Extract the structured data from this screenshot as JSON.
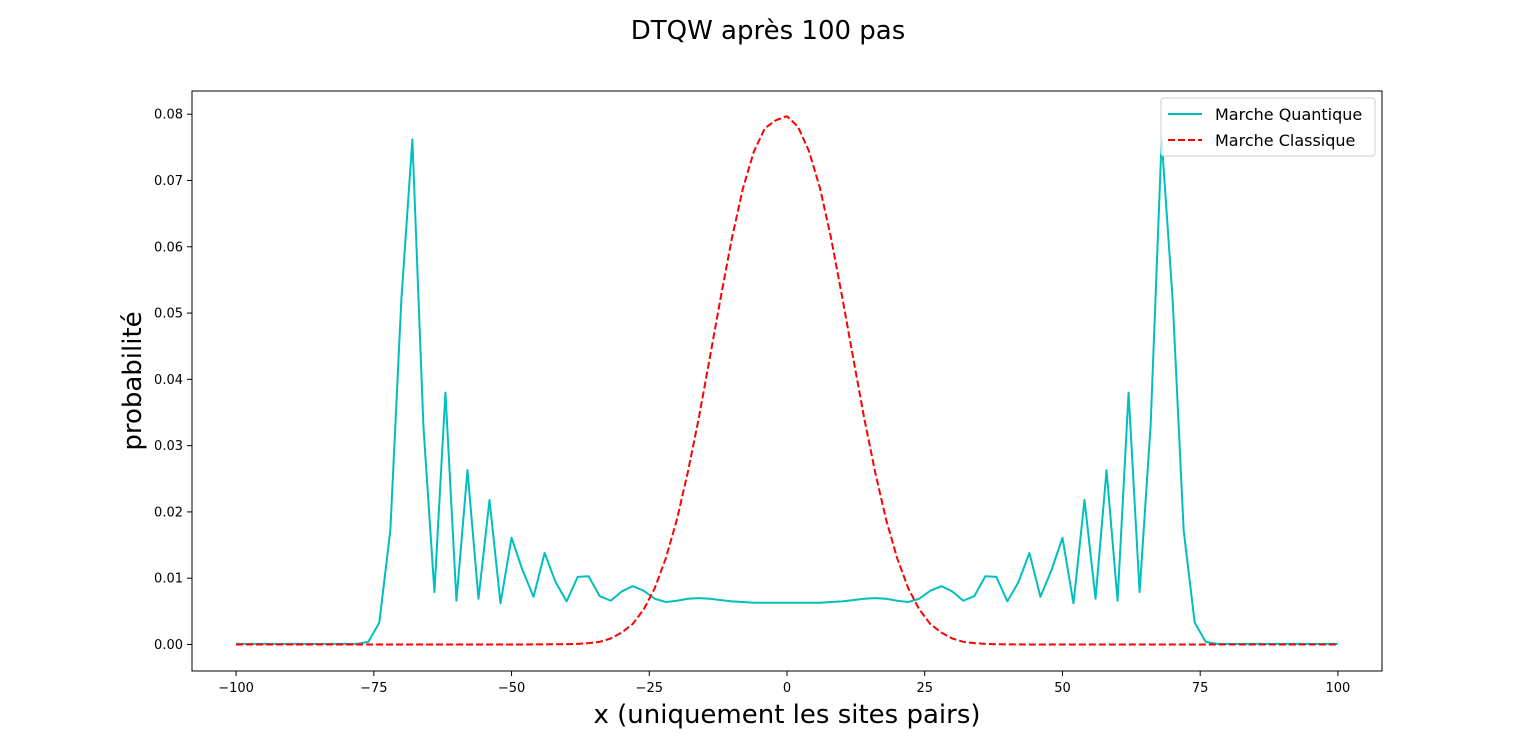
{
  "chart_data": {
    "type": "line",
    "title": "DTQW après 100 pas",
    "xlabel": "x (uniquement les sites pairs)",
    "ylabel": "probabilité",
    "xlim": [
      -108,
      108
    ],
    "ylim": [
      -0.004,
      0.0835
    ],
    "xticks": [
      -100,
      -75,
      -50,
      -25,
      0,
      25,
      50,
      75,
      100
    ],
    "yticks": [
      0.0,
      0.01,
      0.02,
      0.03,
      0.04,
      0.05,
      0.06,
      0.07,
      0.08
    ],
    "ytick_labels": [
      "0.00",
      "0.01",
      "0.02",
      "0.03",
      "0.04",
      "0.05",
      "0.06",
      "0.07",
      "0.08"
    ],
    "grid": false,
    "legend_position": "top-right",
    "series": [
      {
        "name": "Marche Quantique",
        "color": "#00bfbf",
        "linestyle": "solid",
        "x": [
          -100,
          -78,
          -76,
          -74,
          -72,
          -70,
          -68,
          -66,
          -64,
          -62,
          -60,
          -58,
          -56,
          -54,
          -52,
          -50,
          -48,
          -46,
          -44,
          -42,
          -40,
          -38,
          -36,
          -34,
          -32,
          -30,
          -28,
          -26,
          -24,
          -22,
          -20,
          -18,
          -16,
          -14,
          -12,
          -10,
          -8,
          -6,
          -4,
          -2,
          0,
          2,
          4,
          6,
          8,
          10,
          12,
          14,
          16,
          18,
          20,
          22,
          24,
          26,
          28,
          30,
          32,
          34,
          36,
          38,
          40,
          42,
          44,
          46,
          48,
          50,
          52,
          54,
          56,
          58,
          60,
          62,
          64,
          66,
          68,
          70,
          72,
          74,
          76,
          78,
          100
        ],
        "y": [
          0.0001,
          0.0001,
          0.0004,
          0.0033,
          0.0172,
          0.052,
          0.0762,
          0.033,
          0.0079,
          0.038,
          0.0066,
          0.0263,
          0.0069,
          0.0218,
          0.0062,
          0.0161,
          0.0112,
          0.0072,
          0.0138,
          0.0094,
          0.0065,
          0.0102,
          0.0103,
          0.0073,
          0.0066,
          0.008,
          0.0088,
          0.0081,
          0.0069,
          0.0064,
          0.0066,
          0.0069,
          0.007,
          0.0069,
          0.0067,
          0.0065,
          0.0064,
          0.0063,
          0.0063,
          0.0063,
          0.0063,
          0.0063,
          0.0063,
          0.0063,
          0.0064,
          0.0065,
          0.0067,
          0.0069,
          0.007,
          0.0069,
          0.0066,
          0.0064,
          0.0069,
          0.0081,
          0.0088,
          0.008,
          0.0066,
          0.0073,
          0.0103,
          0.0102,
          0.0065,
          0.0094,
          0.0138,
          0.0072,
          0.0112,
          0.0161,
          0.0062,
          0.0218,
          0.0069,
          0.0263,
          0.0066,
          0.038,
          0.0079,
          0.033,
          0.0762,
          0.052,
          0.0172,
          0.0033,
          0.0004,
          0.0001,
          0.0001
        ]
      },
      {
        "name": "Marche Classique",
        "color": "#ff0000",
        "linestyle": "dashed",
        "x": [
          -100,
          -96,
          -92,
          -88,
          -84,
          -80,
          -76,
          -72,
          -68,
          -64,
          -60,
          -56,
          -52,
          -48,
          -44,
          -40,
          -38,
          -36,
          -34,
          -32,
          -30,
          -28,
          -26,
          -24,
          -22,
          -20,
          -18,
          -16,
          -14,
          -12,
          -10,
          -8,
          -6,
          -4,
          -2,
          0,
          2,
          4,
          6,
          8,
          10,
          12,
          14,
          16,
          18,
          20,
          22,
          24,
          26,
          28,
          30,
          32,
          34,
          36,
          38,
          40,
          44,
          48,
          52,
          56,
          60,
          64,
          68,
          72,
          76,
          80,
          84,
          88,
          92,
          96,
          100
        ],
        "y": [
          0,
          0,
          0,
          0,
          0,
          0,
          0,
          0,
          0,
          0,
          0,
          0,
          0,
          0,
          2e-05,
          4e-05,
          0.0001,
          0.0002,
          0.0004,
          0.0009,
          0.0018,
          0.0031,
          0.0053,
          0.0085,
          0.013,
          0.0188,
          0.026,
          0.0342,
          0.0433,
          0.0525,
          0.0613,
          0.0688,
          0.0744,
          0.0779,
          0.0791,
          0.0797,
          0.0781,
          0.0744,
          0.0688,
          0.0613,
          0.0525,
          0.0433,
          0.0342,
          0.026,
          0.0188,
          0.013,
          0.0085,
          0.0053,
          0.0031,
          0.0018,
          0.0009,
          0.0004,
          0.0002,
          0.0001,
          4e-05,
          2e-05,
          0,
          0,
          0,
          0,
          0,
          0,
          0,
          0,
          0,
          0,
          0,
          0,
          0,
          0,
          0
        ]
      }
    ]
  }
}
